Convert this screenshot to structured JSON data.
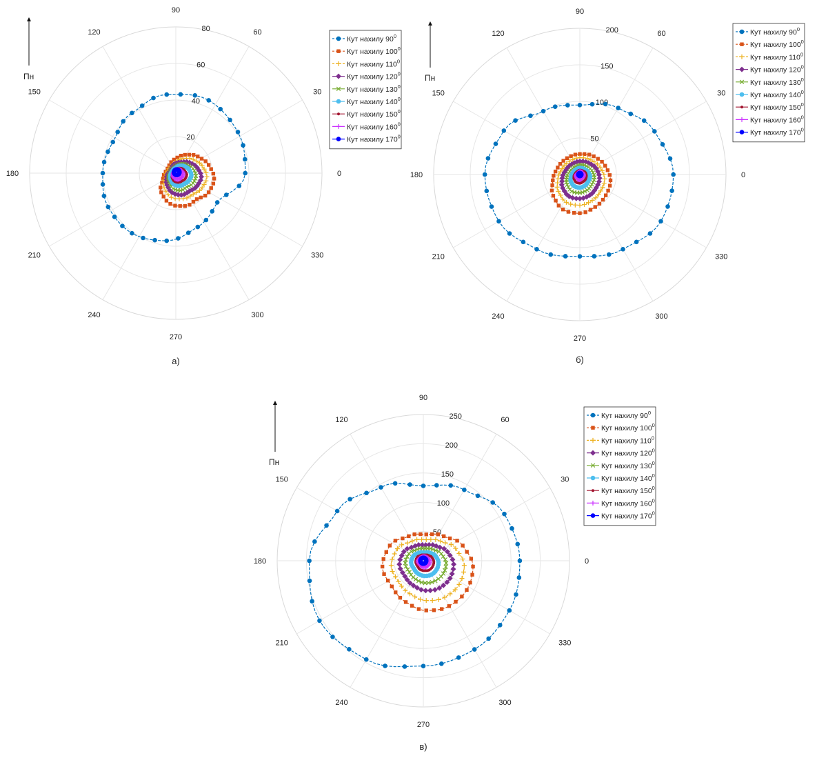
{
  "figure": {
    "up_label": "Пн",
    "angle_ticks": [
      "0",
      "30",
      "60",
      "90",
      "120",
      "150",
      "180",
      "210",
      "240",
      "270",
      "300",
      "330"
    ]
  },
  "series_style": [
    {
      "color": "#0072BD",
      "marker": "circle",
      "dashed": true
    },
    {
      "color": "#D95319",
      "marker": "square",
      "dashed": true
    },
    {
      "color": "#EDB120",
      "marker": "plus",
      "dashed": true
    },
    {
      "color": "#7E2F8E",
      "marker": "diamond",
      "dashed": false
    },
    {
      "color": "#77AC30",
      "marker": "x",
      "dashed": false
    },
    {
      "color": "#4DBEEE",
      "marker": "circle",
      "dashed": false
    },
    {
      "color": "#A2142F",
      "marker": "dot",
      "dashed": false
    },
    {
      "color": "#CC33FF",
      "marker": "plus",
      "dashed": false
    },
    {
      "color": "#0000FF",
      "marker": "circle",
      "dashed": false
    }
  ],
  "chart_data": [
    {
      "type": "polar",
      "caption": "а)",
      "theta_unit": "degrees",
      "rlim": [
        0,
        80
      ],
      "rticks": [
        20,
        40,
        60,
        80
      ],
      "grid": true,
      "legend_position": "top-right",
      "series": [
        {
          "name_base": "Кут нахилу 90",
          "name_sup": "0",
          "center": [
            -5,
            0
          ],
          "radii": [
            43,
            45,
            46,
            43,
            38,
            34,
            35,
            37,
            38,
            37,
            34,
            32
          ]
        },
        {
          "name_base": "Кут нахилу 100",
          "name_sup": "0",
          "center": [
            5,
            -3
          ],
          "radii": [
            16,
            15,
            14,
            13,
            12,
            11,
            12,
            15,
            16,
            15,
            13,
            15
          ]
        },
        {
          "name_base": "Кут нахилу 110",
          "name_sup": "0",
          "center": [
            4,
            -2
          ],
          "radii": [
            13,
            12,
            11,
            10,
            9,
            9,
            10,
            12,
            13,
            12,
            11,
            12
          ]
        },
        {
          "name_base": "Кут нахилу 120",
          "name_sup": "0",
          "center": [
            3,
            -2
          ],
          "radii": [
            11,
            10,
            9,
            8,
            8,
            7,
            8,
            9,
            10,
            10,
            9,
            10
          ]
        },
        {
          "name_base": "Кут нахилу 130",
          "name_sup": "0",
          "center": [
            2.5,
            -1.5
          ],
          "radii": [
            8.5,
            8,
            7,
            6.5,
            6,
            6,
            6.5,
            7,
            8,
            8,
            7,
            8
          ]
        },
        {
          "name_base": "Кут нахилу 140",
          "name_sup": "0",
          "center": [
            2,
            -1
          ],
          "radii": [
            6.5,
            6,
            5.5,
            5,
            4.5,
            4.5,
            5,
            5.5,
            6,
            6,
            5.5,
            6
          ]
        },
        {
          "name_base": "Кут нахилу 150",
          "name_sup": "0",
          "center": [
            1.5,
            -0.8
          ],
          "radii": [
            4.5,
            4,
            3.8,
            3.5,
            3.3,
            3.3,
            3.5,
            4,
            4.3,
            4.3,
            4,
            4.3
          ]
        },
        {
          "name_base": "Кут нахилу 160",
          "name_sup": "0",
          "center": [
            1,
            -0.5
          ],
          "radii": [
            3,
            2.8,
            2.6,
            2.5,
            2.4,
            2.4,
            2.5,
            2.7,
            2.9,
            2.9,
            2.8,
            2.9
          ]
        },
        {
          "name_base": "Кут нахилу 170",
          "name_sup": "0",
          "center": [
            0.5,
            0.5
          ],
          "radii": [
            1.5,
            1.5,
            1.5,
            1.5,
            1.5,
            1.5,
            1.5,
            1.5,
            1.5,
            1.5,
            1.5,
            1.5
          ]
        }
      ]
    },
    {
      "type": "polar",
      "caption": "б)",
      "theta_unit": "degrees",
      "rlim": [
        0,
        200
      ],
      "rticks": [
        50,
        100,
        150,
        200
      ],
      "grid": true,
      "legend_position": "top-right",
      "series": [
        {
          "name_base": "Кут нахилу 90",
          "name_sup": "0",
          "center": [
            0,
            0
          ],
          "radii": [
            128,
            118,
            105,
            95,
            100,
            120,
            130,
            128,
            118,
            112,
            118,
            128
          ]
        },
        {
          "name_base": "Кут нахилу 100",
          "name_sup": "0",
          "center": [
            0,
            -8
          ],
          "radii": [
            42,
            40,
            38,
            36,
            35,
            35,
            37,
            42,
            46,
            45,
            42,
            41
          ]
        },
        {
          "name_base": "Кут нахилу 110",
          "name_sup": "0",
          "center": [
            0,
            -6
          ],
          "radii": [
            34,
            32,
            30,
            29,
            28,
            28,
            30,
            34,
            37,
            36,
            34,
            33
          ]
        },
        {
          "name_base": "Кут нахилу 120",
          "name_sup": "0",
          "center": [
            0,
            -5
          ],
          "radii": [
            27,
            26,
            24,
            23,
            22,
            22,
            24,
            27,
            29,
            28,
            27,
            26
          ]
        },
        {
          "name_base": "Кут нахилу 130",
          "name_sup": "0",
          "center": [
            0,
            -4
          ],
          "radii": [
            20,
            19,
            18,
            17,
            16,
            16,
            18,
            20,
            22,
            21,
            20,
            19
          ]
        },
        {
          "name_base": "Кут нахилу 140",
          "name_sup": "0",
          "center": [
            0,
            -3
          ],
          "radii": [
            14,
            13,
            12,
            12,
            11,
            11,
            12,
            14,
            15,
            15,
            14,
            13
          ]
        },
        {
          "name_base": "Кут нахилу 150",
          "name_sup": "0",
          "center": [
            0,
            -2
          ],
          "radii": [
            9,
            9,
            8,
            8,
            7,
            7,
            8,
            9,
            10,
            10,
            9,
            9
          ]
        },
        {
          "name_base": "Кут нахилу 160",
          "name_sup": "0",
          "center": [
            0,
            -1
          ],
          "radii": [
            5,
            5,
            5,
            5,
            4,
            4,
            5,
            5,
            6,
            6,
            5,
            5
          ]
        },
        {
          "name_base": "Кут нахилу 170",
          "name_sup": "0",
          "center": [
            0,
            0
          ],
          "radii": [
            2,
            2,
            2,
            2,
            2,
            2,
            2,
            2,
            2,
            2,
            2,
            2
          ]
        }
      ]
    },
    {
      "type": "polar",
      "caption": "в)",
      "theta_unit": "degrees",
      "rlim": [
        0,
        250
      ],
      "rticks": [
        50,
        100,
        150,
        200,
        250
      ],
      "grid": true,
      "legend_position": "top-right",
      "series": [
        {
          "name_base": "Кут нахилу 90",
          "name_sup": "0",
          "center": [
            0,
            0
          ],
          "radii": [
            165,
            160,
            140,
            128,
            145,
            170,
            195,
            205,
            195,
            180,
            175,
            170
          ]
        },
        {
          "name_base": "Кут нахилу 100",
          "name_sup": "0",
          "center": [
            5,
            -10
          ],
          "radii": [
            80,
            72,
            60,
            55,
            60,
            72,
            75,
            68,
            70,
            75,
            78,
            80
          ]
        },
        {
          "name_base": "Кут нахилу 110",
          "name_sup": "0",
          "center": [
            5,
            -8
          ],
          "radii": [
            65,
            58,
            48,
            44,
            48,
            57,
            60,
            55,
            56,
            60,
            63,
            65
          ]
        },
        {
          "name_base": "Кут нахилу 120",
          "name_sup": "0",
          "center": [
            4,
            -6
          ],
          "radii": [
            48,
            43,
            36,
            33,
            36,
            43,
            45,
            41,
            42,
            45,
            47,
            48
          ]
        },
        {
          "name_base": "Кут нахилу 130",
          "name_sup": "0",
          "center": [
            3,
            -4
          ],
          "radii": [
            36,
            32,
            27,
            25,
            27,
            32,
            34,
            31,
            32,
            34,
            35,
            36
          ]
        },
        {
          "name_base": "Кут нахилу 140",
          "name_sup": "0",
          "center": [
            2,
            -3
          ],
          "radii": [
            24,
            22,
            19,
            17,
            19,
            22,
            23,
            21,
            22,
            23,
            24,
            24
          ]
        },
        {
          "name_base": "Кут нахилу 150",
          "name_sup": "0",
          "center": [
            2,
            -2
          ],
          "radii": [
            16,
            15,
            13,
            12,
            13,
            15,
            15,
            14,
            15,
            15,
            16,
            16
          ]
        },
        {
          "name_base": "Кут нахилу 160",
          "name_sup": "0",
          "center": [
            1,
            -1
          ],
          "radii": [
            10,
            9,
            8,
            8,
            8,
            9,
            10,
            9,
            9,
            10,
            10,
            10
          ]
        },
        {
          "name_base": "Кут нахилу 170",
          "name_sup": "0",
          "center": [
            0,
            0
          ],
          "radii": [
            5,
            5,
            5,
            5,
            5,
            5,
            5,
            5,
            5,
            5,
            5,
            5
          ]
        }
      ]
    }
  ]
}
